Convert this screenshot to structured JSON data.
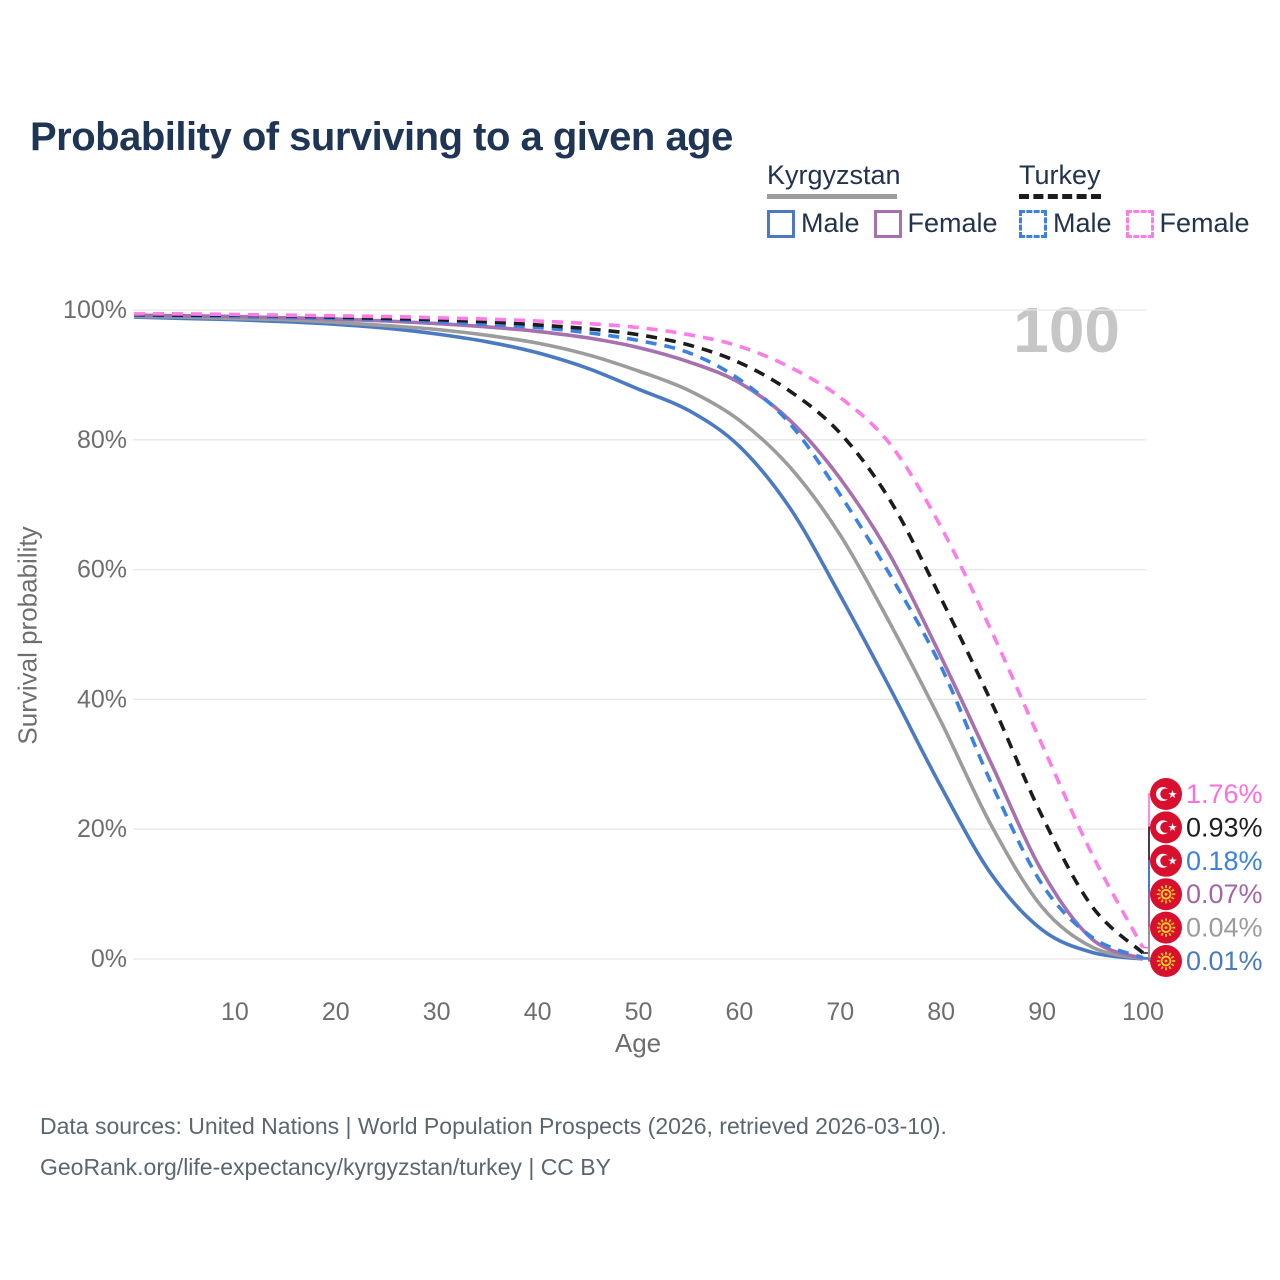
{
  "title": "Probability of surviving to a given age",
  "watermark": "100",
  "legend": {
    "groups": [
      {
        "name": "Kyrgyzstan",
        "underline": "solid",
        "underline_color": "#9c9c9c",
        "items": [
          {
            "label": "Male",
            "color": "#4c7ac2",
            "dashed": false
          },
          {
            "label": "Female",
            "color": "#a770ae",
            "dashed": false
          }
        ]
      },
      {
        "name": "Turkey",
        "underline": "dashed",
        "underline_color": "#1c1c1c",
        "items": [
          {
            "label": "Male",
            "color": "#3b82e0",
            "dashed": true
          },
          {
            "label": "Female",
            "color": "#fc7ce8",
            "dashed": true
          }
        ]
      }
    ]
  },
  "chart_data": {
    "type": "line",
    "title": "Probability of surviving to a given age",
    "xlabel": "Age",
    "ylabel": "Survival probability",
    "xlim": [
      0,
      100
    ],
    "ylim": [
      0,
      100
    ],
    "grid": "horizontal-only",
    "legend_position": "top-right",
    "xticks": [
      10,
      20,
      30,
      40,
      50,
      60,
      70,
      80,
      90,
      100
    ],
    "yticks": [
      {
        "value": 0,
        "label": "0%"
      },
      {
        "value": 20,
        "label": "20%"
      },
      {
        "value": 40,
        "label": "40%"
      },
      {
        "value": 60,
        "label": "60%"
      },
      {
        "value": 80,
        "label": "80%"
      },
      {
        "value": 100,
        "label": "100%"
      }
    ],
    "x": [
      0,
      5,
      10,
      15,
      20,
      25,
      30,
      35,
      40,
      45,
      50,
      55,
      60,
      65,
      70,
      75,
      80,
      85,
      90,
      95,
      100
    ],
    "series": [
      {
        "id": "kyrgyzstan-male",
        "country": "Kyrgyzstan",
        "sex": "Male",
        "color": "#4c7ac2",
        "dashed": false,
        "values": [
          98.9,
          98.7,
          98.5,
          98.2,
          97.8,
          97.2,
          96.3,
          95.1,
          93.4,
          91.0,
          87.8,
          84.5,
          79.0,
          69.5,
          56.0,
          41.5,
          26.5,
          13.0,
          4.5,
          1.0,
          0.01
        ]
      },
      {
        "id": "kyrgyzstan-both",
        "country": "Kyrgyzstan",
        "sex": "Both sexes",
        "color": "#9c9c9c",
        "dashed": false,
        "values": [
          99.0,
          98.9,
          98.7,
          98.5,
          98.1,
          97.6,
          97.0,
          96.1,
          94.9,
          93.1,
          90.6,
          87.6,
          83.0,
          75.8,
          65.3,
          51.5,
          36.5,
          20.5,
          8.0,
          1.8,
          0.04
        ]
      },
      {
        "id": "kyrgyzstan-female",
        "country": "Kyrgyzstan",
        "sex": "Female",
        "color": "#a770ae",
        "dashed": false,
        "values": [
          99.2,
          99.1,
          99.0,
          98.8,
          98.6,
          98.3,
          97.9,
          97.4,
          96.7,
          95.7,
          94.2,
          92.0,
          88.8,
          83.0,
          74.0,
          62.0,
          46.5,
          30.0,
          13.5,
          3.0,
          0.07
        ]
      },
      {
        "id": "turkey-male",
        "country": "Turkey",
        "sex": "Male",
        "color": "#3b82e0",
        "dashed": true,
        "values": [
          99.2,
          99.1,
          99.0,
          98.9,
          98.7,
          98.5,
          98.2,
          97.8,
          97.3,
          96.5,
          95.3,
          93.4,
          89.3,
          82.5,
          71.5,
          59.0,
          45.0,
          27.0,
          11.5,
          3.3,
          0.18
        ]
      },
      {
        "id": "turkey-both",
        "country": "Turkey",
        "sex": "Both sexes",
        "color": "#1c1c1c",
        "dashed": true,
        "values": [
          99.3,
          99.2,
          99.2,
          99.1,
          98.9,
          98.7,
          98.5,
          98.2,
          97.7,
          97.1,
          96.2,
          94.6,
          91.9,
          87.5,
          81.0,
          70.5,
          55.5,
          39.5,
          22.0,
          8.0,
          0.93
        ]
      },
      {
        "id": "turkey-female",
        "country": "Turkey",
        "sex": "Female",
        "color": "#fc7ce8",
        "dashed": true,
        "values": [
          99.4,
          99.4,
          99.3,
          99.2,
          99.1,
          99.0,
          98.8,
          98.6,
          98.3,
          97.9,
          97.3,
          96.2,
          94.4,
          91.2,
          86.5,
          79.2,
          66.5,
          50.5,
          33.0,
          16.0,
          1.76
        ]
      }
    ],
    "end_labels": [
      {
        "value": "1.76%",
        "series": "turkey-female",
        "flag": "turkey",
        "color": "#fb6ee0"
      },
      {
        "value": "0.93%",
        "series": "turkey-both",
        "flag": "turkey",
        "color": "#1f1f1f"
      },
      {
        "value": "0.18%",
        "series": "turkey-male",
        "flag": "turkey",
        "color": "#3b82e0"
      },
      {
        "value": "0.07%",
        "series": "kyrgyzstan-female",
        "flag": "kyrgyzstan",
        "color": "#a465a7"
      },
      {
        "value": "0.04%",
        "series": "kyrgyzstan-both",
        "flag": "kyrgyzstan",
        "color": "#9c9c9c"
      },
      {
        "value": "0.01%",
        "series": "kyrgyzstan-male",
        "flag": "kyrgyzstan",
        "color": "#4c7ac2"
      }
    ],
    "colors": {
      "flag_red": "#d90f2e",
      "sun_yellow": "#ffce1f",
      "gridline": "#e7e7e7",
      "tick_text": "#6e6e6e"
    }
  },
  "source": {
    "line1": "Data sources: United Nations | World Population Prospects (2026, retrieved 2026-03-10).",
    "line2": "GeoRank.org/life-expectancy/kyrgyzstan/turkey | CC BY"
  }
}
